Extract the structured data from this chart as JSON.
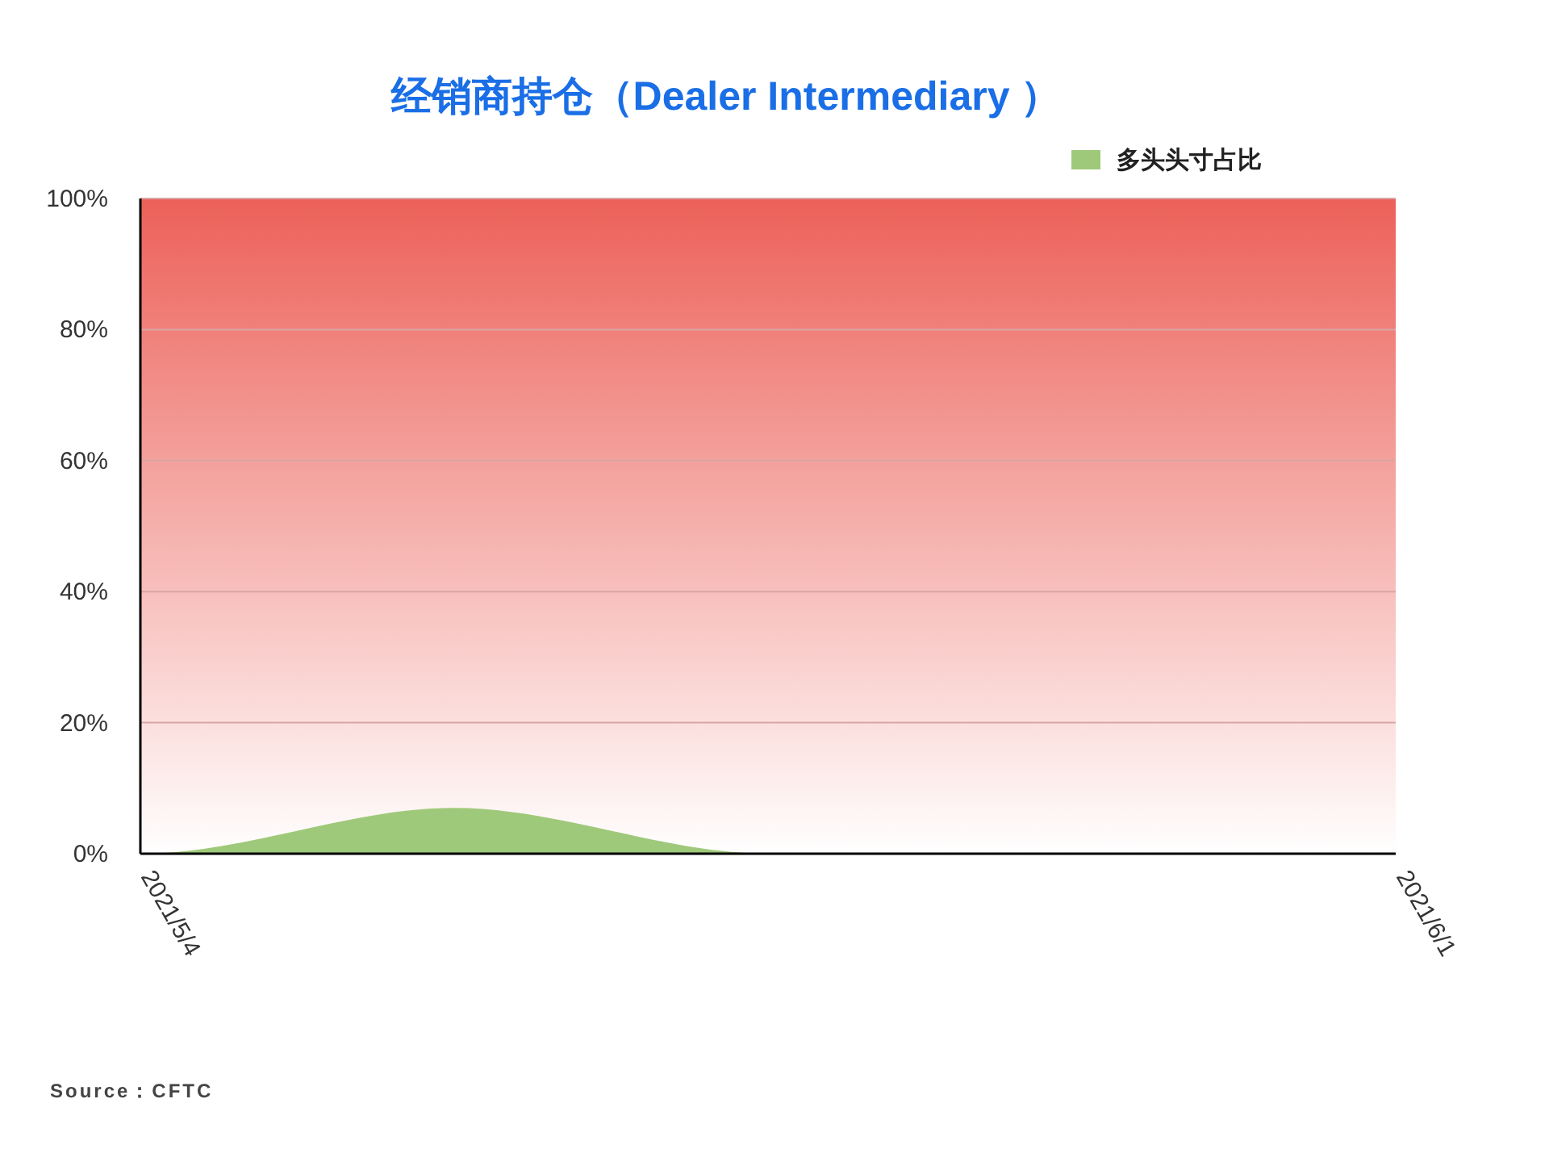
{
  "chart_data": {
    "type": "area",
    "title": "经销商持仓（Dealer Intermediary ）",
    "categories": [
      "2021/5/4",
      null,
      null,
      null,
      "2021/6/1"
    ],
    "series": [
      {
        "color": "#ec6159",
        "values": [
          100,
          100,
          100,
          100,
          100
        ]
      },
      {
        "name": "多头头寸占比",
        "color": "#9fc97a",
        "values": [
          0,
          7,
          0,
          0,
          0
        ]
      }
    ],
    "ylim": [
      0,
      100
    ],
    "yticks": [
      {
        "value": 0,
        "label": "0%"
      },
      {
        "value": 20,
        "label": "20%"
      },
      {
        "value": 40,
        "label": "40%"
      },
      {
        "value": 60,
        "label": "60%"
      },
      {
        "value": 80,
        "label": "80%"
      },
      {
        "value": 100,
        "label": "100%"
      }
    ],
    "grid": "y",
    "legend": "top right",
    "annotations": [
      "Source：CFTC"
    ]
  }
}
